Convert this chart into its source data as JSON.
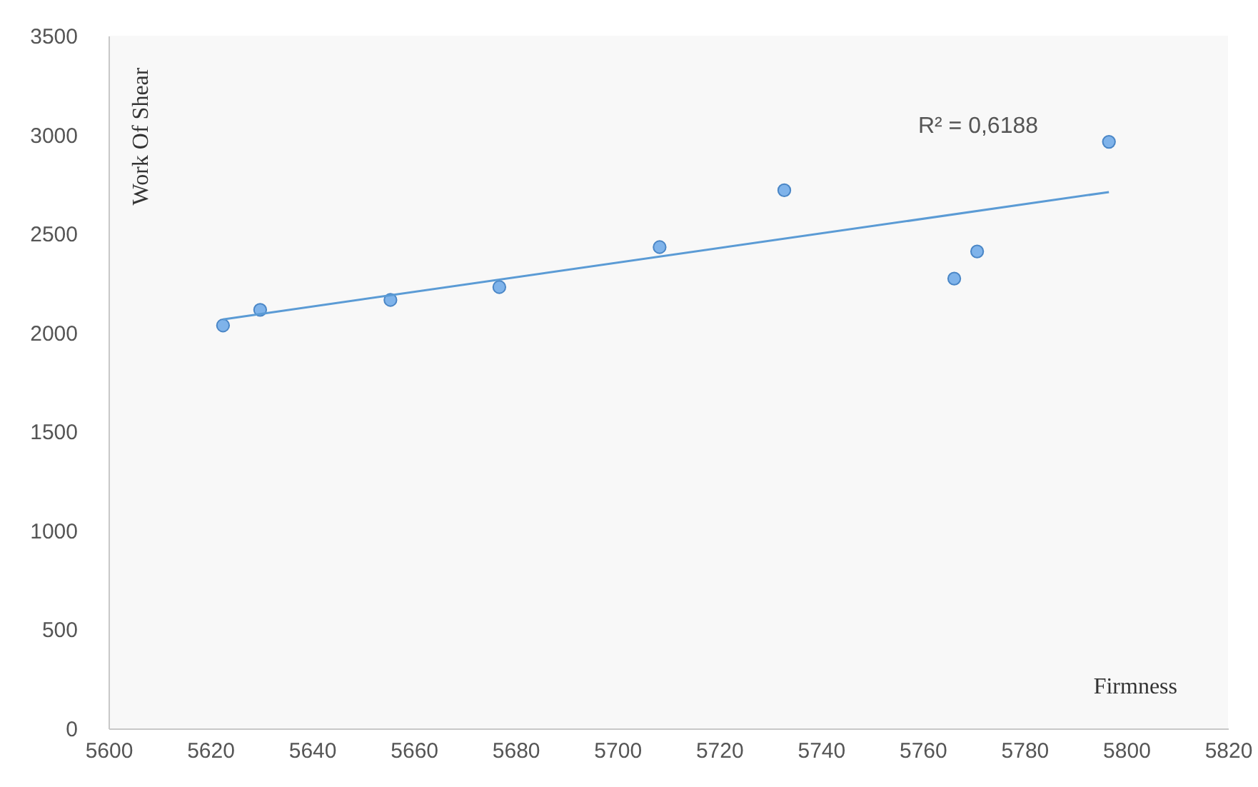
{
  "chart_data": {
    "type": "scatter",
    "xlabel": "Firmness",
    "ylabel": "Work Of Shear",
    "xlim": [
      5600,
      5820
    ],
    "xticks": [
      5600,
      5620,
      5640,
      5660,
      5680,
      5700,
      5720,
      5740,
      5760,
      5780,
      5800,
      5820
    ],
    "ylim": [
      0,
      3500
    ],
    "yticks": [
      0,
      500,
      1000,
      1500,
      2000,
      2500,
      3000,
      3500
    ],
    "grid": false,
    "series": [
      {
        "marker": "circle",
        "color": "#7fb3ea",
        "x": [
          5622.5,
          5629.8,
          5655.4,
          5676.8,
          5708.3,
          5732.8,
          5766.2,
          5770.7,
          5796.6
        ],
        "values": [
          2036,
          2115,
          2165,
          2230,
          2432,
          2719,
          2273,
          2410,
          2964
        ]
      },
      {
        "type": "line",
        "color": "#5b9bd5",
        "line_style": "solid",
        "x": [
          5622.5,
          5796.6
        ],
        "values": [
          2067,
          2710
        ]
      }
    ],
    "annotations": [
      "R² = 0,6188"
    ]
  }
}
